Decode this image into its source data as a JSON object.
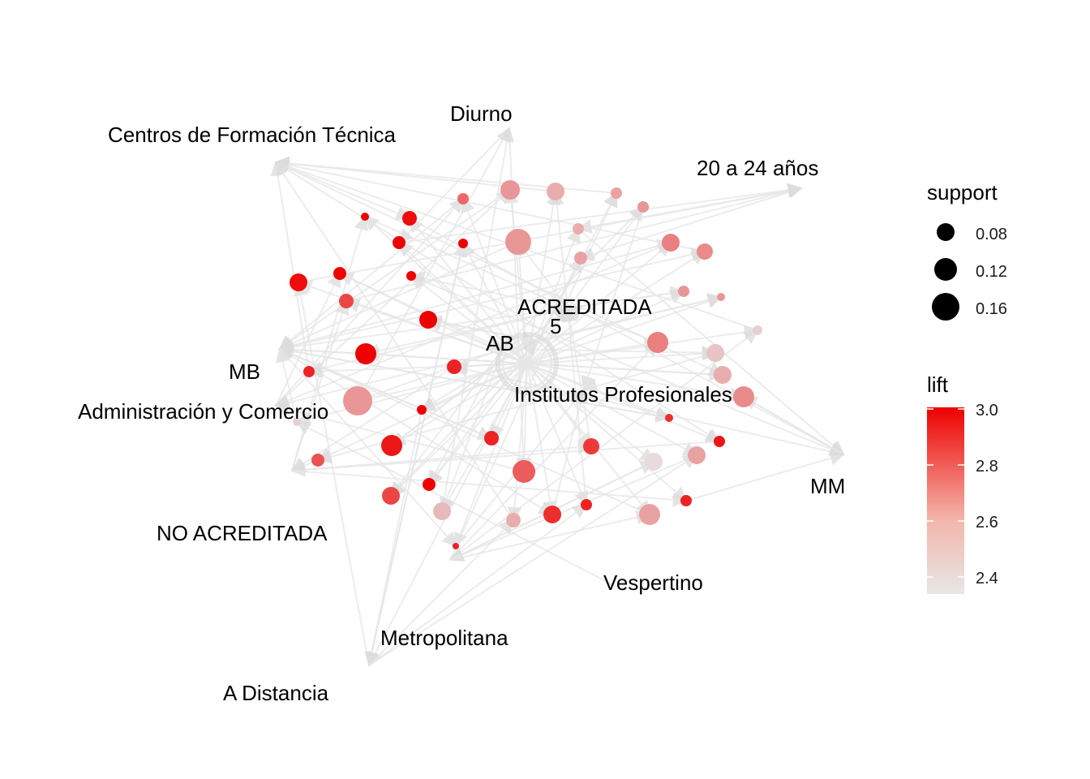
{
  "graph": {
    "type": "association-rules-network",
    "item_labels": [
      "Diurno",
      "Centros de Formación Técnica",
      "20 a 24 años",
      "ACREDITADA",
      "5",
      "AB",
      "MB",
      "Administración y Comercio",
      "Institutos Profesionales",
      "MM",
      "NO ACREDITADA",
      "Vespertino",
      "Metropolitana",
      "A Distancia"
    ],
    "colors": {
      "edge": "#e6e6e6",
      "lift_low": "#e7e7e7",
      "lift_high": "#ee0000"
    }
  },
  "legend": {
    "support": {
      "title": "support",
      "entries": [
        {
          "label": "0.08",
          "value": 0.08
        },
        {
          "label": "0.12",
          "value": 0.12
        },
        {
          "label": "0.16",
          "value": 0.16
        }
      ]
    },
    "lift": {
      "title": "lift",
      "range": [
        2.35,
        3.0
      ],
      "ticks": [
        "3.0",
        "2.8",
        "2.6",
        "2.4"
      ]
    }
  }
}
